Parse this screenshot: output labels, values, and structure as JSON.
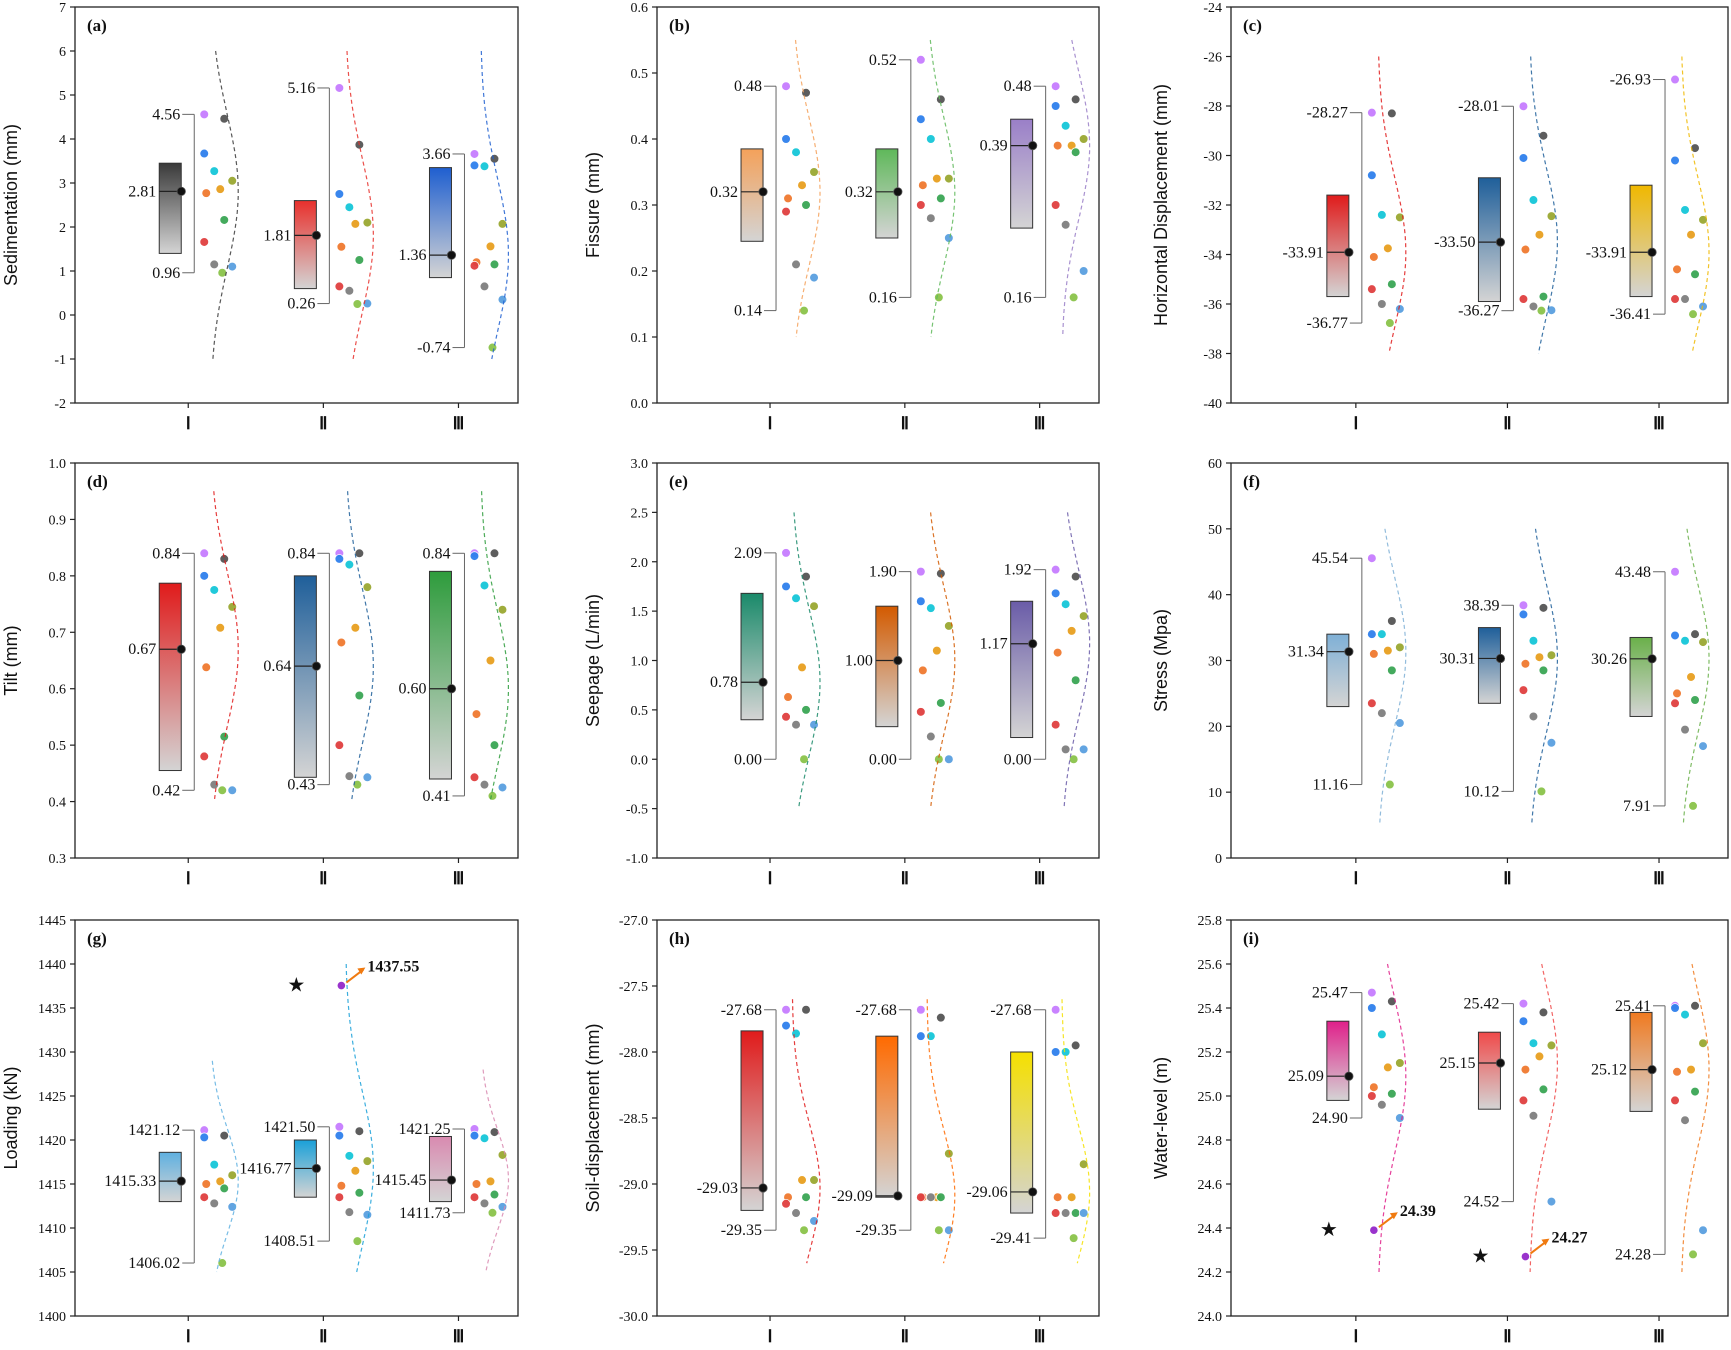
{
  "chart_data": [
    {
      "id": "a",
      "panel_label": "(a)",
      "type": "box",
      "ylabel": "Sedimentation (mm)",
      "ylim": [
        -2,
        7
      ],
      "yticks": [
        -2,
        -1,
        0,
        1,
        2,
        3,
        4,
        5,
        6,
        7
      ],
      "categories": [
        "Ⅰ",
        "Ⅱ",
        "Ⅲ"
      ],
      "groups": [
        {
          "q1": 1.4,
          "q3": 3.45,
          "mean": 2.81,
          "min": 0.96,
          "max": 4.56,
          "labels": [
            "4.56",
            "2.81",
            "0.96"
          ],
          "color": "#3a3a3a",
          "points": [
            4.56,
            4.46,
            3.67,
            3.27,
            3.05,
            2.86,
            2.77,
            2.16,
            1.66,
            1.15,
            1.1,
            0.96
          ],
          "curve": [
            -1,
            6
          ]
        },
        {
          "q1": 0.6,
          "q3": 2.6,
          "mean": 1.81,
          "min": 0.26,
          "max": 5.16,
          "labels": [
            "5.16",
            "1.81",
            "0.26"
          ],
          "color": "#e8302c",
          "points": [
            5.16,
            3.87,
            2.75,
            2.45,
            2.1,
            2.07,
            1.55,
            1.25,
            0.65,
            0.55,
            0.26,
            0.25
          ],
          "curve": [
            -1,
            6
          ]
        },
        {
          "q1": 0.85,
          "q3": 3.35,
          "mean": 1.36,
          "min": -0.74,
          "max": 3.66,
          "labels": [
            "3.66",
            "1.36",
            "-0.74"
          ],
          "color": "#1f5fd0",
          "points": [
            3.66,
            3.55,
            3.4,
            3.38,
            2.07,
            1.56,
            1.2,
            1.15,
            1.12,
            0.65,
            0.35,
            -0.74
          ],
          "curve": [
            -1,
            6
          ]
        }
      ]
    },
    {
      "id": "b",
      "panel_label": "(b)",
      "type": "box",
      "ylabel": "Fissure (mm)",
      "ylim": [
        0,
        0.6
      ],
      "yticks": [
        0,
        0.1,
        0.2,
        0.3,
        0.4,
        0.5,
        0.6
      ],
      "categories": [
        "Ⅰ",
        "Ⅱ",
        "Ⅲ"
      ],
      "groups": [
        {
          "q1": 0.245,
          "q3": 0.385,
          "mean": 0.32,
          "min": 0.14,
          "max": 0.48,
          "labels": [
            "0.48",
            "0.32",
            "0.14"
          ],
          "color": "#f4a15a",
          "points": [
            0.48,
            0.47,
            0.4,
            0.38,
            0.35,
            0.33,
            0.31,
            0.3,
            0.29,
            0.21,
            0.19,
            0.14
          ],
          "curve": [
            0.1,
            0.55
          ]
        },
        {
          "q1": 0.25,
          "q3": 0.385,
          "mean": 0.32,
          "min": 0.16,
          "max": 0.52,
          "labels": [
            "0.52",
            "0.32",
            "0.16"
          ],
          "color": "#5fb85a",
          "points": [
            0.52,
            0.46,
            0.43,
            0.4,
            0.34,
            0.34,
            0.33,
            0.31,
            0.3,
            0.28,
            0.25,
            0.16
          ],
          "curve": [
            0.1,
            0.55
          ]
        },
        {
          "q1": 0.265,
          "q3": 0.43,
          "mean": 0.39,
          "min": 0.16,
          "max": 0.48,
          "labels": [
            "0.48",
            "0.39",
            "0.16"
          ],
          "color": "#9a7fc8",
          "points": [
            0.48,
            0.46,
            0.45,
            0.42,
            0.4,
            0.39,
            0.39,
            0.38,
            0.3,
            0.27,
            0.2,
            0.16
          ],
          "curve": [
            0.1,
            0.55
          ]
        }
      ]
    },
    {
      "id": "c",
      "panel_label": "(c)",
      "type": "box",
      "ylabel": "Horizontal Displacement (mm)",
      "ylim": [
        -40,
        -24
      ],
      "yticks": [
        -40,
        -38,
        -36,
        -34,
        -32,
        -30,
        -28,
        -26,
        -24
      ],
      "categories": [
        "Ⅰ",
        "Ⅱ",
        "Ⅲ"
      ],
      "groups": [
        {
          "q1": -35.7,
          "q3": -31.6,
          "mean": -33.91,
          "min": -36.77,
          "max": -28.27,
          "labels": [
            "-28.27",
            "-33.91",
            "-36.77"
          ],
          "color": "#e01b1b",
          "points": [
            -28.27,
            -28.3,
            -30.8,
            -32.4,
            -32.5,
            -33.75,
            -34.1,
            -35.2,
            -35.4,
            -36.0,
            -36.2,
            -36.77
          ],
          "curve": [
            -38,
            -26
          ]
        },
        {
          "q1": -35.9,
          "q3": -30.9,
          "mean": -33.5,
          "min": -36.27,
          "max": -28.01,
          "labels": [
            "-28.01",
            "-33.50",
            "-36.27"
          ],
          "color": "#1f5f9a",
          "points": [
            -28.01,
            -29.2,
            -30.1,
            -31.8,
            -32.45,
            -33.2,
            -33.8,
            -35.7,
            -35.8,
            -36.1,
            -36.25,
            -36.27
          ],
          "curve": [
            -38,
            -26
          ]
        },
        {
          "q1": -35.7,
          "q3": -31.2,
          "mean": -33.91,
          "min": -36.41,
          "max": -26.93,
          "labels": [
            "-26.93",
            "-33.91",
            "-36.41"
          ],
          "color": "#f0b800",
          "points": [
            -26.93,
            -29.7,
            -30.2,
            -32.2,
            -32.6,
            -33.2,
            -34.6,
            -34.8,
            -35.8,
            -35.8,
            -36.1,
            -36.41
          ],
          "curve": [
            -38,
            -26
          ]
        }
      ]
    },
    {
      "id": "d",
      "panel_label": "(d)",
      "type": "box",
      "ylabel": "Tilt (mm)",
      "ylim": [
        0.3,
        1.0
      ],
      "yticks": [
        0.3,
        0.4,
        0.5,
        0.6,
        0.7,
        0.8,
        0.9,
        1.0
      ],
      "categories": [
        "Ⅰ",
        "Ⅱ",
        "Ⅲ"
      ],
      "groups": [
        {
          "q1": 0.455,
          "q3": 0.787,
          "mean": 0.67,
          "min": 0.42,
          "max": 0.84,
          "labels": [
            "0.84",
            "0.67",
            "0.42"
          ],
          "color": "#e01b1b",
          "points": [
            0.84,
            0.83,
            0.8,
            0.775,
            0.745,
            0.708,
            0.638,
            0.515,
            0.48,
            0.43,
            0.42,
            0.42
          ],
          "curve": [
            0.4,
            0.95
          ]
        },
        {
          "q1": 0.443,
          "q3": 0.8,
          "mean": 0.64,
          "min": 0.43,
          "max": 0.84,
          "labels": [
            "0.84",
            "0.64",
            "0.43"
          ],
          "color": "#1f5f9a",
          "points": [
            0.84,
            0.84,
            0.83,
            0.82,
            0.78,
            0.708,
            0.682,
            0.588,
            0.5,
            0.445,
            0.443,
            0.43
          ],
          "curve": [
            0.4,
            0.95
          ]
        },
        {
          "q1": 0.44,
          "q3": 0.808,
          "mean": 0.6,
          "min": 0.41,
          "max": 0.84,
          "labels": [
            "0.84",
            "0.60",
            "0.41"
          ],
          "color": "#2e9c3c",
          "points": [
            0.84,
            0.84,
            0.835,
            0.783,
            0.74,
            0.65,
            0.555,
            0.5,
            0.443,
            0.43,
            0.425,
            0.41
          ],
          "curve": [
            0.4,
            0.95
          ]
        }
      ]
    },
    {
      "id": "e",
      "panel_label": "(e)",
      "type": "box",
      "ylabel": "Seepage (L/min)",
      "ylim": [
        -1.0,
        3.0
      ],
      "yticks": [
        -1.0,
        -0.5,
        0.0,
        0.5,
        1.0,
        1.5,
        2.0,
        2.5,
        3.0
      ],
      "categories": [
        "Ⅰ",
        "Ⅱ",
        "Ⅲ"
      ],
      "groups": [
        {
          "q1": 0.4,
          "q3": 1.68,
          "mean": 0.78,
          "min": 0.0,
          "max": 2.09,
          "labels": [
            "2.09",
            "0.78",
            "0.00"
          ],
          "color": "#1a8a6a",
          "points": [
            2.09,
            1.85,
            1.75,
            1.63,
            1.55,
            0.93,
            0.63,
            0.5,
            0.43,
            0.35,
            0.35,
            0.0
          ],
          "curve": [
            -0.5,
            2.5
          ]
        },
        {
          "q1": 0.33,
          "q3": 1.55,
          "mean": 1.0,
          "min": 0.0,
          "max": 1.9,
          "labels": [
            "1.90",
            "1.00",
            "0.00"
          ],
          "color": "#d35a00",
          "points": [
            1.9,
            1.88,
            1.6,
            1.53,
            1.35,
            1.1,
            0.9,
            0.57,
            0.48,
            0.23,
            0.0,
            0.0
          ],
          "curve": [
            -0.5,
            2.5
          ]
        },
        {
          "q1": 0.22,
          "q3": 1.6,
          "mean": 1.17,
          "min": 0.0,
          "max": 1.92,
          "labels": [
            "1.92",
            "1.17",
            "0.00"
          ],
          "color": "#6a5ca8",
          "points": [
            1.92,
            1.85,
            1.68,
            1.57,
            1.45,
            1.3,
            1.08,
            0.8,
            0.35,
            0.1,
            0.1,
            0.0
          ],
          "curve": [
            -0.5,
            2.5
          ]
        }
      ]
    },
    {
      "id": "f",
      "panel_label": "(f)",
      "type": "box",
      "ylabel": "Stress (Mpa)",
      "ylim": [
        0,
        60
      ],
      "yticks": [
        0,
        10,
        20,
        30,
        40,
        50,
        60
      ],
      "categories": [
        "Ⅰ",
        "Ⅱ",
        "Ⅲ"
      ],
      "groups": [
        {
          "q1": 23,
          "q3": 34,
          "mean": 31.34,
          "min": 11.16,
          "max": 45.54,
          "labels": [
            "45.54",
            "31.34",
            "11.16"
          ],
          "color": "#7fb0d6",
          "points": [
            45.54,
            36.0,
            34.0,
            34.0,
            32.0,
            31.5,
            31.0,
            28.5,
            23.5,
            22.0,
            20.5,
            11.16
          ],
          "curve": [
            5,
            50
          ]
        },
        {
          "q1": 23.5,
          "q3": 35,
          "mean": 30.31,
          "min": 10.12,
          "max": 38.39,
          "labels": [
            "38.39",
            "30.31",
            "10.12"
          ],
          "color": "#1f5f9a",
          "points": [
            38.39,
            38.0,
            37.0,
            33.0,
            30.8,
            30.5,
            29.5,
            28.5,
            25.5,
            21.5,
            17.5,
            10.12
          ],
          "curve": [
            5,
            50
          ]
        },
        {
          "q1": 21.5,
          "q3": 33.5,
          "mean": 30.26,
          "min": 7.91,
          "max": 43.48,
          "labels": [
            "43.48",
            "30.26",
            "7.91"
          ],
          "color": "#6ab04a",
          "points": [
            43.48,
            34.0,
            33.8,
            33.0,
            32.8,
            27.5,
            25.0,
            24.0,
            23.5,
            19.5,
            17.0,
            7.91
          ],
          "curve": [
            5,
            50
          ]
        }
      ]
    },
    {
      "id": "g",
      "panel_label": "(g)",
      "type": "box",
      "ylabel": "Loading (kN)",
      "ylim": [
        1400,
        1445
      ],
      "yticks": [
        1400,
        1405,
        1410,
        1415,
        1420,
        1425,
        1430,
        1435,
        1440,
        1445
      ],
      "categories": [
        "Ⅰ",
        "Ⅱ",
        "Ⅲ"
      ],
      "groups": [
        {
          "q1": 1413,
          "q3": 1418.6,
          "mean": 1415.33,
          "min": 1406.02,
          "max": 1421.12,
          "labels": [
            "1421.12",
            "1415.33",
            "1406.02"
          ],
          "color": "#5fb0e0",
          "points": [
            1421.12,
            1420.5,
            1420.3,
            1417.2,
            1416.0,
            1415.3,
            1415.0,
            1414.5,
            1413.5,
            1412.8,
            1412.4,
            1406.02
          ],
          "curve": [
            1405,
            1429
          ]
        },
        {
          "q1": 1413.5,
          "q3": 1420,
          "mean": 1416.77,
          "min": 1408.51,
          "max": 1421.5,
          "labels": [
            "1421.50",
            "1416.77",
            "1408.51"
          ],
          "color": "#1aa0d8",
          "points": [
            1421.5,
            1421.0,
            1420.5,
            1418.2,
            1417.6,
            1416.5,
            1414.8,
            1414.0,
            1413.5,
            1411.8,
            1411.5,
            1408.51
          ],
          "curve": [
            1405,
            1440
          ],
          "outlier": {
            "value": 1437.55,
            "label": "1437.55"
          }
        },
        {
          "q1": 1413,
          "q3": 1420.4,
          "mean": 1415.45,
          "min": 1411.73,
          "max": 1421.25,
          "labels": [
            "1421.25",
            "1415.45",
            "1411.73"
          ],
          "color": "#d98ab0",
          "points": [
            1421.25,
            1420.9,
            1420.5,
            1420.2,
            1418.3,
            1415.3,
            1415.0,
            1413.8,
            1413.5,
            1412.8,
            1412.4,
            1411.73
          ],
          "curve": [
            1405,
            1428
          ]
        }
      ]
    },
    {
      "id": "h",
      "panel_label": "(h)",
      "type": "box",
      "ylabel": "Soil-displacement (mm)",
      "ylim": [
        -30.0,
        -27.0
      ],
      "yticks": [
        -30.0,
        -29.5,
        -29.0,
        -28.5,
        -28.0,
        -27.5,
        -27.0
      ],
      "categories": [
        "Ⅰ",
        "Ⅱ",
        "Ⅲ"
      ],
      "groups": [
        {
          "q1": -29.2,
          "q3": -27.84,
          "mean": -29.03,
          "min": -29.35,
          "max": -27.68,
          "labels": [
            "-27.68",
            "-29.03",
            "-29.35"
          ],
          "color": "#e01b1b",
          "points": [
            -27.68,
            -27.68,
            -27.8,
            -27.86,
            -28.97,
            -28.97,
            -29.1,
            -29.1,
            -29.15,
            -29.22,
            -29.28,
            -29.35
          ],
          "curve": [
            -29.6,
            -27.6
          ]
        },
        {
          "q1": -29.1,
          "q3": -27.88,
          "mean": -29.09,
          "min": -29.35,
          "max": -27.68,
          "labels": [
            "-27.68",
            "-29.09",
            "-29.35"
          ],
          "color": "#ff6a00",
          "points": [
            -27.68,
            -27.74,
            -27.88,
            -27.88,
            -28.77,
            -29.1,
            -29.1,
            -29.1,
            -29.1,
            -29.1,
            -29.35,
            -29.35
          ],
          "curve": [
            -29.6,
            -27.6
          ]
        },
        {
          "q1": -29.22,
          "q3": -28.0,
          "mean": -29.06,
          "min": -29.41,
          "max": -27.68,
          "labels": [
            "-27.68",
            "-29.06",
            "-29.41"
          ],
          "color": "#f5e000",
          "points": [
            -27.68,
            -27.95,
            -28.0,
            -28.0,
            -28.85,
            -29.1,
            -29.1,
            -29.22,
            -29.22,
            -29.22,
            -29.22,
            -29.41
          ],
          "curve": [
            -29.6,
            -27.6
          ]
        }
      ]
    },
    {
      "id": "i",
      "panel_label": "(i)",
      "type": "box",
      "ylabel": "Water-level (m)",
      "ylim": [
        24.0,
        25.8
      ],
      "yticks": [
        24.0,
        24.2,
        24.4,
        24.6,
        24.8,
        25.0,
        25.2,
        25.4,
        25.6,
        25.8
      ],
      "categories": [
        "Ⅰ",
        "Ⅱ",
        "Ⅲ"
      ],
      "groups": [
        {
          "q1": 24.98,
          "q3": 25.34,
          "mean": 25.09,
          "min": 24.9,
          "max": 25.47,
          "labels": [
            "25.47",
            "25.09",
            "24.90"
          ],
          "color": "#e0208a",
          "points": [
            25.47,
            25.43,
            25.4,
            25.28,
            25.15,
            25.13,
            25.04,
            25.01,
            25.0,
            24.96,
            24.9,
            24.39
          ],
          "curve": [
            24.2,
            25.6
          ],
          "outlier": {
            "value": 24.39,
            "label": "24.39"
          }
        },
        {
          "q1": 24.94,
          "q3": 25.29,
          "mean": 25.15,
          "min": 24.52,
          "max": 25.42,
          "labels": [
            "25.42",
            "25.15",
            "24.52"
          ],
          "color": "#f04a4a",
          "points": [
            25.42,
            25.38,
            25.34,
            25.24,
            25.23,
            25.18,
            25.12,
            25.03,
            24.98,
            24.91,
            24.52,
            24.27
          ],
          "curve": [
            24.2,
            25.6
          ],
          "outlier": {
            "value": 24.27,
            "label": "24.27"
          }
        },
        {
          "q1": 24.93,
          "q3": 25.38,
          "mean": 25.12,
          "min": 24.28,
          "max": 25.41,
          "labels": [
            "25.41",
            "25.12",
            "24.28"
          ],
          "color": "#f07a20",
          "points": [
            25.41,
            25.41,
            25.4,
            25.37,
            25.24,
            25.12,
            25.11,
            25.02,
            24.98,
            24.89,
            24.39,
            24.28
          ],
          "curve": [
            24.2,
            25.6
          ]
        }
      ]
    }
  ]
}
